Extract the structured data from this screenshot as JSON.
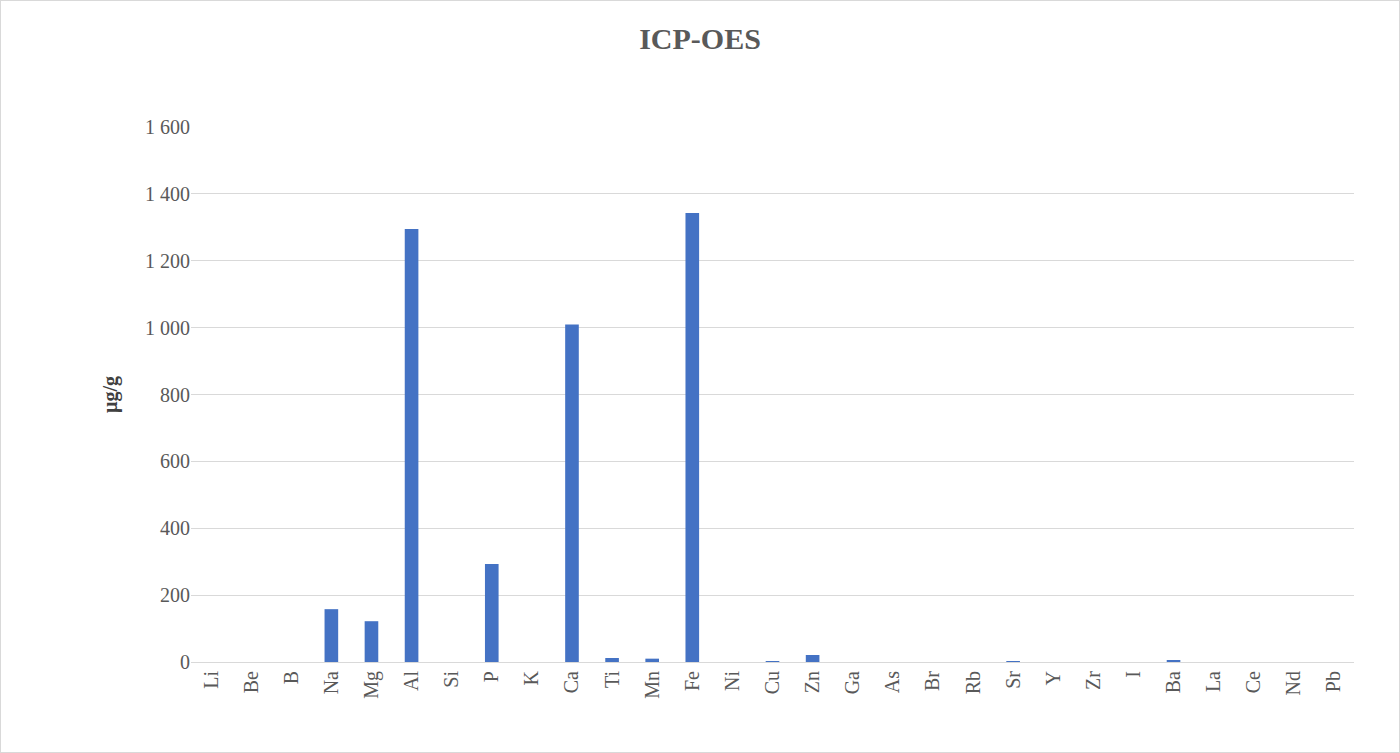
{
  "chart_data": {
    "type": "bar",
    "title": "ICP-OES",
    "y_label": "µg/g",
    "categories": [
      "Li",
      "Be",
      "B",
      "Na",
      "Mg",
      "Al",
      "Si",
      "P",
      "K",
      "Ca",
      "Ti",
      "Mn",
      "Fe",
      "Ni",
      "Cu",
      "Zn",
      "Ga",
      "As",
      "Br",
      "Rb",
      "Sr",
      "Y",
      "Zr",
      "I",
      "Ba",
      "La",
      "Ce",
      "Nd",
      "Pb"
    ],
    "values": [
      0,
      0,
      0,
      158,
      122,
      1295,
      0,
      293,
      0,
      1009,
      12,
      10,
      1343,
      0,
      2,
      21,
      0,
      0,
      0,
      0,
      3,
      0,
      0,
      0,
      4,
      0,
      0,
      0,
      0
    ],
    "color": "#4472c4",
    "ylim": [
      0,
      1600
    ],
    "yticks": [
      0,
      200,
      400,
      600,
      800,
      {
        "value": 1000,
        "label": "1 000"
      },
      {
        "value": 1200,
        "label": "1 200"
      },
      {
        "value": 1400,
        "label": "1 400"
      },
      {
        "value": 1600,
        "label": "1 600"
      }
    ],
    "grid": true
  }
}
